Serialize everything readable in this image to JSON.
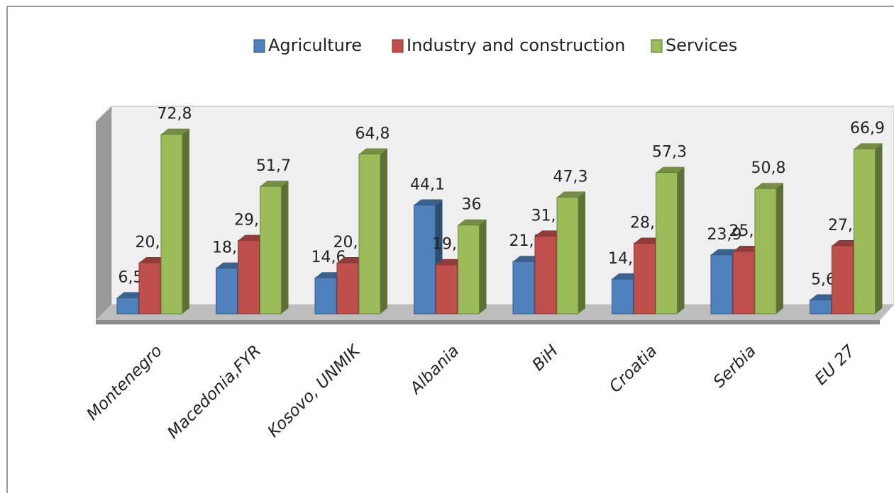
{
  "chart_data": {
    "type": "bar3d",
    "categories": [
      "Montenegro",
      "Macedonia,FYR",
      "Kosovo, UNMIK",
      "Albania",
      "BiH",
      "Croatia",
      "Serbia",
      "EU 27"
    ],
    "series": [
      {
        "name": "Agriculture",
        "color": "#4f81bd",
        "values": [
          6.5,
          18.5,
          14.6,
          44.1,
          21.2,
          14.1,
          23.9,
          5.6
        ],
        "value_labels": [
          "6,5",
          "18,5",
          "14,6",
          "44,1",
          "21,2",
          "14,1",
          "23,9",
          "5,6"
        ]
      },
      {
        "name": "Industry and construction",
        "color": "#c0504d",
        "values": [
          20.7,
          29.7,
          20.7,
          19.9,
          31.5,
          28.6,
          25.3,
          27.6
        ],
        "value_labels": [
          "20,7",
          "29,7",
          "20,7",
          "19,9",
          "31,5",
          "28,6",
          "25,3",
          "27,6"
        ]
      },
      {
        "name": "Services",
        "color": "#9bbb59",
        "values": [
          72.8,
          51.7,
          64.8,
          36,
          47.3,
          57.3,
          50.8,
          66.9
        ],
        "value_labels": [
          "72,8",
          "51,7",
          "64,8",
          "36",
          "47,3",
          "57,3",
          "50,8",
          "66,9"
        ]
      }
    ],
    "legend": "top"
  }
}
